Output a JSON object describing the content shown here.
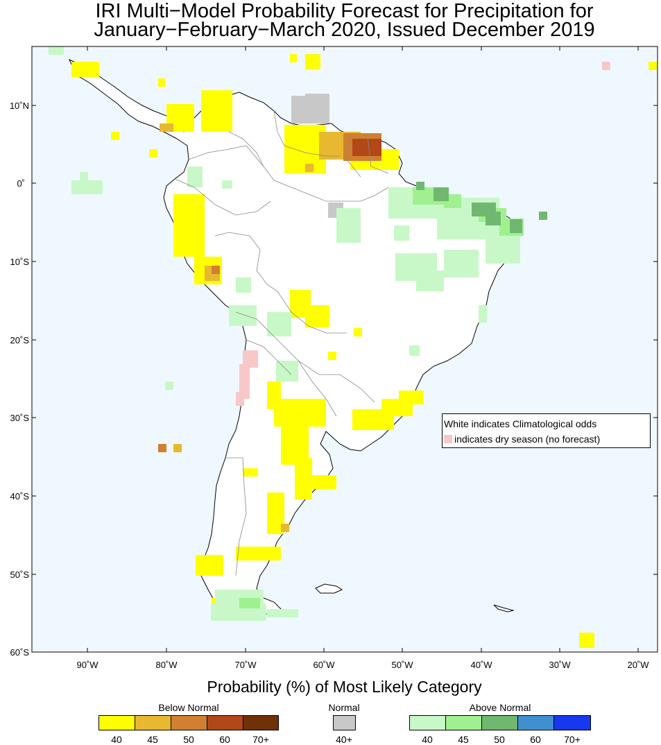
{
  "title_line1": "IRI Multi−Model Probability Forecast for Precipitation for",
  "title_line2": "January−February−March 2020, Issued December 2019",
  "subtitle": "Probability (%) of Most Likely Category",
  "note": {
    "line1": "White indicates Climatological odds",
    "line2": "indicates dry season (no forecast)"
  },
  "axes": {
    "lat_labels": [
      "10˚N",
      "0˚",
      "10˚S",
      "20˚S",
      "30˚S",
      "40˚S",
      "50˚S",
      "60˚S"
    ],
    "lon_labels": [
      "90˚W",
      "80˚W",
      "70˚W",
      "60˚W",
      "50˚W",
      "40˚W",
      "30˚W",
      "20˚W"
    ]
  },
  "legend": {
    "below": {
      "label": "Below Normal",
      "ticks": [
        "40",
        "45",
        "50",
        "60",
        "70+"
      ],
      "colors": [
        "#ffff00",
        "#e8b830",
        "#d08030",
        "#b04818",
        "#703008"
      ]
    },
    "normal": {
      "label": "Normal",
      "ticks": [
        "40+"
      ],
      "colors": [
        "#c8c8c8"
      ]
    },
    "above": {
      "label": "Above Normal",
      "ticks": [
        "40",
        "45",
        "50",
        "60",
        "70+"
      ],
      "colors": [
        "#c8f8c8",
        "#a0f090",
        "#70b870",
        "#4090d0",
        "#1838f0"
      ]
    }
  },
  "colors": {
    "ocean": "#f0f8ff",
    "land": "#ffffff",
    "dry_season": "#f8c8c8",
    "coast": "#000000",
    "border": "#888888"
  }
}
